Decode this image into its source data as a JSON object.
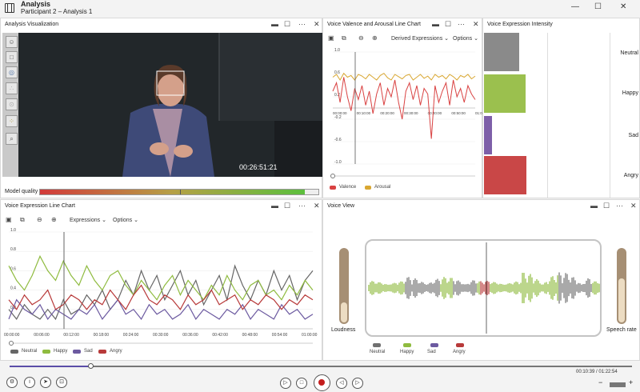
{
  "app": {
    "title": "Analysis",
    "subtitle": "Participant 2 – Analysis 1"
  },
  "window_controls": {
    "minimize": "—",
    "maximize": "☐",
    "close": "✕"
  },
  "panel_controls": {
    "min": "▬",
    "max": "☐",
    "more": "···",
    "close": "✕"
  },
  "analysis_viz": {
    "title": "Analysis Visualization",
    "timestamp": "00:26:51:21",
    "model_quality_label": "Model quality",
    "model_quality": 0.95
  },
  "valence_chart": {
    "title": "Voice Valence and Arousal Line Chart",
    "dropdown": "Derived Expressions",
    "options": "Options",
    "chart_data": {
      "type": "line",
      "ylim": [
        -1,
        1
      ],
      "yticks": [
        "1.0",
        "0.6",
        "0.2",
        "-0.2",
        "-0.6",
        "-1.0"
      ],
      "xticks": [
        "00:00:00",
        "00:10:00",
        "00:20:00",
        "00:30:00",
        "00:40:00",
        "00:50:00",
        "01:00:00"
      ],
      "series": [
        {
          "name": "Valence",
          "color": "#d94242",
          "values": [
            0.3,
            0.45,
            0.1,
            0.55,
            0.2,
            -0.05,
            0.35,
            0.15,
            0.4,
            0.05,
            0.3,
            -0.1,
            0.25,
            0.45,
            0.05,
            0.35,
            0.2,
            0.5,
            0.1,
            -0.2,
            0.3,
            0.45,
            0.15,
            0.4,
            0.05,
            0.35,
            0.25,
            -0.55,
            0.4,
            0.1,
            0.3,
            0.45,
            0.05,
            0.5,
            0.2,
            0.35,
            0.1,
            0.4,
            0.25,
            0.15
          ]
        },
        {
          "name": "Arousal",
          "color": "#d9a732",
          "values": [
            0.55,
            0.6,
            0.5,
            0.62,
            0.55,
            0.58,
            0.5,
            0.6,
            0.57,
            0.52,
            0.6,
            0.55,
            0.5,
            0.58,
            0.62,
            0.54,
            0.5,
            0.6,
            0.56,
            0.52,
            0.58,
            0.6,
            0.5,
            0.55,
            0.6,
            0.53,
            0.57,
            0.5,
            0.6,
            0.55,
            0.58,
            0.52,
            0.6,
            0.56,
            0.5,
            0.58,
            0.55,
            0.6,
            0.52,
            0.57
          ]
        }
      ]
    }
  },
  "intensity": {
    "title": "Voice Expression Intensity",
    "bars": [
      {
        "name": "Neutral",
        "value": 0.78,
        "color": "#8a8a8a"
      },
      {
        "name": "Happy",
        "value": 0.92,
        "color": "#9bc04e"
      },
      {
        "name": "Sad",
        "value": 0.18,
        "color": "#7d5fa8"
      },
      {
        "name": "Angry",
        "value": 0.95,
        "color": "#c94747"
      }
    ]
  },
  "expr_chart": {
    "title": "Voice Expression Line Chart",
    "dropdown": "Expressions",
    "options": "Options",
    "chart_data": {
      "type": "line",
      "ylim": [
        0,
        1
      ],
      "yticks": [
        "1.0",
        "0.8",
        "0.6",
        "0.4",
        "0.2"
      ],
      "xticks": [
        "00:00:00",
        "00:06:00",
        "00:12:00",
        "00:18:00",
        "00:24:00",
        "00:30:00",
        "00:36:00",
        "00:42:00",
        "00:48:00",
        "00:54:00",
        "01:00:00"
      ],
      "series": [
        {
          "name": "Neutral",
          "color": "#666666",
          "values": [
            0.2,
            0.1,
            0.25,
            0.15,
            0.1,
            0.2,
            0.1,
            0.3,
            0.15,
            0.2,
            0.35,
            0.25,
            0.4,
            0.2,
            0.3,
            0.5,
            0.35,
            0.6,
            0.4,
            0.55,
            0.3,
            0.45,
            0.6,
            0.35,
            0.5,
            0.25,
            0.4,
            0.55,
            0.3,
            0.65,
            0.45,
            0.3,
            0.5,
            0.35,
            0.6,
            0.4,
            0.55,
            0.3,
            0.5,
            0.6
          ]
        },
        {
          "name": "Happy",
          "color": "#8fbb3f",
          "values": [
            0.65,
            0.5,
            0.4,
            0.55,
            0.75,
            0.6,
            0.5,
            0.7,
            0.55,
            0.45,
            0.65,
            0.5,
            0.4,
            0.55,
            0.6,
            0.45,
            0.35,
            0.5,
            0.4,
            0.3,
            0.45,
            0.55,
            0.35,
            0.5,
            0.4,
            0.3,
            0.45,
            0.35,
            0.55,
            0.4,
            0.3,
            0.45,
            0.5,
            0.35,
            0.4,
            0.3,
            0.45,
            0.35,
            0.5,
            0.4
          ]
        },
        {
          "name": "Sad",
          "color": "#6c5aa0",
          "values": [
            0.1,
            0.3,
            0.2,
            0.15,
            0.25,
            0.1,
            0.2,
            0.15,
            0.1,
            0.2,
            0.15,
            0.25,
            0.1,
            0.2,
            0.3,
            0.15,
            0.2,
            0.1,
            0.25,
            0.15,
            0.2,
            0.1,
            0.15,
            0.25,
            0.1,
            0.2,
            0.15,
            0.1,
            0.2,
            0.15,
            0.25,
            0.1,
            0.2,
            0.15,
            0.1,
            0.25,
            0.15,
            0.2,
            0.1,
            0.15
          ]
        },
        {
          "name": "Angry",
          "color": "#b83a3a",
          "values": [
            0.3,
            0.2,
            0.35,
            0.25,
            0.3,
            0.4,
            0.2,
            0.25,
            0.35,
            0.3,
            0.2,
            0.3,
            0.25,
            0.4,
            0.3,
            0.2,
            0.35,
            0.45,
            0.3,
            0.25,
            0.35,
            0.3,
            0.2,
            0.35,
            0.25,
            0.3,
            0.4,
            0.25,
            0.3,
            0.35,
            0.2,
            0.3,
            0.25,
            0.35,
            0.3,
            0.2,
            0.3,
            0.25,
            0.35,
            0.3
          ]
        }
      ]
    }
  },
  "voice_view": {
    "title": "Voice View",
    "loudness_label": "Loudness",
    "speech_rate_label": "Speech rate",
    "loudness": 0.28,
    "speech_rate": 0.6,
    "legend": [
      {
        "name": "Neutral",
        "color": "#707070"
      },
      {
        "name": "Happy",
        "color": "#8fbb3f"
      },
      {
        "name": "Sad",
        "color": "#6c5aa0"
      },
      {
        "name": "Angry",
        "color": "#b83a3a"
      }
    ]
  },
  "playback": {
    "current": "00:10:39",
    "total": "01:22:54",
    "separator": " / ",
    "progress": 0.13,
    "zoom_out": "−",
    "zoom_in": "+"
  }
}
